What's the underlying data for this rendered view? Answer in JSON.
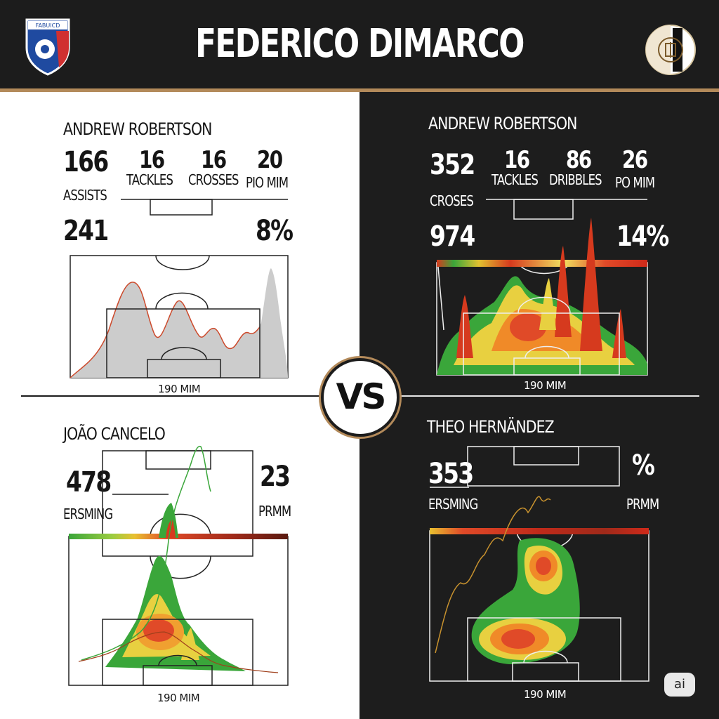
{
  "header": {
    "title": "FEDERICO DIMARCO",
    "left_crest_text": "FABUICD",
    "colors": {
      "bar": "#1c1c1c",
      "accent": "#b38a5a"
    }
  },
  "vs_label": "VS",
  "watermark": "ai",
  "panels": {
    "top_left": {
      "player": "ANDREW ROBERTSON",
      "stats": [
        {
          "value": "166",
          "label": "ASSISTS"
        },
        {
          "value": "16",
          "label": "TACKLES"
        },
        {
          "value": "16",
          "label": "CROSSES"
        },
        {
          "value": "20",
          "label": "PIO MIM"
        }
      ],
      "secondary_left": "241",
      "secondary_right": "8%",
      "footer": "190 MIM"
    },
    "top_right": {
      "player": "ANDREW ROBERTSON",
      "stats": [
        {
          "value": "352",
          "label": "CROSES"
        },
        {
          "value": "16",
          "label": "TACKLES"
        },
        {
          "value": "86",
          "label": "DRIBBLES"
        },
        {
          "value": "26",
          "label": "PO MIM"
        }
      ],
      "secondary_left": "974",
      "secondary_right": "14%",
      "footer": "190 MIM"
    },
    "bottom_left": {
      "player": "JOÃO CANCELO",
      "stat_left": {
        "value": "478",
        "label": "ERSMING"
      },
      "stat_right": {
        "value": "23",
        "label": "PRMM"
      },
      "footer": "190 MIM"
    },
    "bottom_right": {
      "player": "THEO HERNÄNDEZ",
      "stat_left": {
        "value": "353",
        "label": "ERSMING"
      },
      "stat_right": {
        "value": "%",
        "label": "PRMM"
      },
      "footer": "190 MIM"
    }
  }
}
